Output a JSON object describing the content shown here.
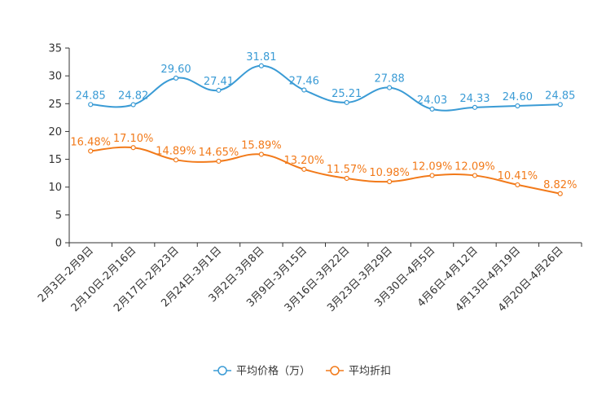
{
  "chart_data": {
    "type": "line",
    "title": "",
    "xlabel": "",
    "ylabel": "",
    "ylim": [
      0,
      35
    ],
    "yticks": [
      0,
      5,
      10,
      15,
      20,
      25,
      30,
      35
    ],
    "grid": false,
    "legend_position": "bottom",
    "categories": [
      "2月3日-2月9日",
      "2月10日-2月16日",
      "2月17日-2月23日",
      "2月24日-3月1日",
      "3月2日-3月8日",
      "3月9日-3月15日",
      "3月16日-3月22日",
      "3月23日-3月29日",
      "3月30日-4月5日",
      "4月6日-4月12日",
      "4月13日-4月19日",
      "4月20日-4月26日"
    ],
    "series": [
      {
        "name": "平均价格（万）",
        "color": "#3a9bd5",
        "values": [
          24.85,
          24.82,
          29.6,
          27.41,
          31.81,
          27.46,
          25.21,
          27.88,
          24.03,
          24.33,
          24.6,
          24.85
        ],
        "labels": [
          "24.85",
          "24.82",
          "29.60",
          "27.41",
          "31.81",
          "27.46",
          "25.21",
          "27.88",
          "24.03",
          "24.33",
          "24.60",
          "24.85"
        ]
      },
      {
        "name": "平均折扣",
        "color": "#f27a1a",
        "values": [
          16.48,
          17.1,
          14.89,
          14.65,
          15.89,
          13.2,
          11.57,
          10.98,
          12.09,
          12.09,
          10.41,
          8.82
        ],
        "labels": [
          "16.48%",
          "17.10%",
          "14.89%",
          "14.65%",
          "15.89%",
          "13.20%",
          "11.57%",
          "10.98%",
          "12.09%",
          "12.09%",
          "10.41%",
          "8.82%"
        ]
      }
    ]
  }
}
